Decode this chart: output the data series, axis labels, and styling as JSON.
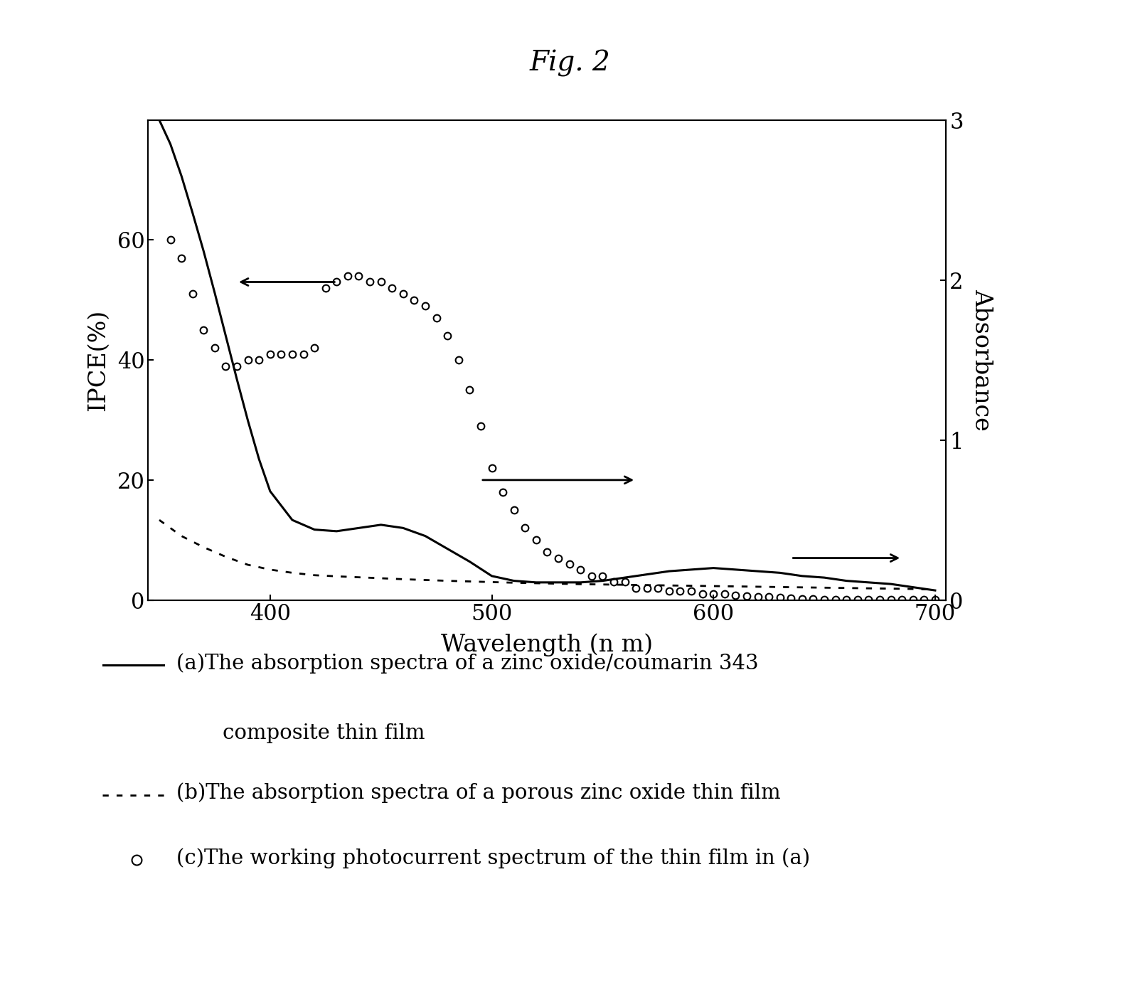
{
  "title": "Fig. 2",
  "xlabel": "Wavelength (n m)",
  "ylabel_left": "IPCE(%)",
  "ylabel_right": "Absorbance",
  "xlim": [
    345,
    705
  ],
  "ylim_left": [
    0,
    80
  ],
  "ylim_right": [
    0,
    3
  ],
  "xticks": [
    400,
    500,
    600,
    700
  ],
  "yticks_left": [
    0,
    20,
    40,
    60
  ],
  "yticks_right": [
    0,
    1,
    2,
    3
  ],
  "curve_a_x": [
    350,
    355,
    360,
    365,
    370,
    375,
    380,
    385,
    390,
    395,
    400,
    410,
    420,
    430,
    440,
    450,
    460,
    470,
    480,
    490,
    500,
    510,
    520,
    530,
    540,
    550,
    560,
    570,
    580,
    590,
    600,
    610,
    620,
    630,
    640,
    650,
    660,
    670,
    680,
    690,
    700
  ],
  "curve_a_y": [
    3.0,
    2.85,
    2.65,
    2.42,
    2.18,
    1.92,
    1.65,
    1.38,
    1.12,
    0.88,
    0.68,
    0.5,
    0.44,
    0.43,
    0.45,
    0.47,
    0.45,
    0.4,
    0.32,
    0.24,
    0.15,
    0.12,
    0.11,
    0.11,
    0.11,
    0.12,
    0.14,
    0.16,
    0.18,
    0.19,
    0.2,
    0.19,
    0.18,
    0.17,
    0.15,
    0.14,
    0.12,
    0.11,
    0.1,
    0.08,
    0.06
  ],
  "curve_b_x": [
    350,
    360,
    370,
    380,
    390,
    400,
    410,
    420,
    430,
    440,
    450,
    460,
    470,
    480,
    490,
    500,
    510,
    520,
    530,
    540,
    550,
    560,
    570,
    580,
    590,
    600,
    610,
    620,
    630,
    640,
    650,
    660,
    670,
    680,
    690,
    700
  ],
  "curve_b_y": [
    0.5,
    0.4,
    0.33,
    0.27,
    0.22,
    0.19,
    0.17,
    0.155,
    0.148,
    0.142,
    0.136,
    0.13,
    0.125,
    0.12,
    0.116,
    0.112,
    0.108,
    0.105,
    0.102,
    0.099,
    0.097,
    0.095,
    0.093,
    0.091,
    0.089,
    0.087,
    0.085,
    0.083,
    0.081,
    0.079,
    0.077,
    0.075,
    0.073,
    0.071,
    0.069,
    0.065
  ],
  "scatter_c_x": [
    355,
    360,
    365,
    370,
    375,
    380,
    385,
    390,
    395,
    400,
    405,
    410,
    415,
    420,
    425,
    430,
    435,
    440,
    445,
    450,
    455,
    460,
    465,
    470,
    475,
    480,
    485,
    490,
    495,
    500,
    505,
    510,
    515,
    520,
    525,
    530,
    535,
    540,
    545,
    550,
    555,
    560,
    565,
    570,
    575,
    580,
    585,
    590,
    595,
    600,
    605,
    610,
    615,
    620,
    625,
    630,
    635,
    640,
    645,
    650,
    655,
    660,
    665,
    670,
    675,
    680,
    685,
    690,
    695,
    700
  ],
  "scatter_c_y": [
    60,
    57,
    51,
    45,
    42,
    39,
    39,
    40,
    40,
    41,
    41,
    41,
    41,
    42,
    52,
    53,
    54,
    54,
    53,
    53,
    52,
    51,
    50,
    49,
    47,
    44,
    40,
    35,
    29,
    22,
    18,
    15,
    12,
    10,
    8,
    7,
    6,
    5,
    4,
    4,
    3,
    3,
    2,
    2,
    2,
    1.5,
    1.5,
    1.5,
    1,
    1,
    1,
    0.8,
    0.7,
    0.6,
    0.5,
    0.4,
    0.3,
    0.2,
    0.2,
    0.1,
    0.1,
    0.1,
    0.1,
    0.1,
    0.1,
    0.1,
    0.1,
    0.1,
    0.1,
    0.1
  ]
}
